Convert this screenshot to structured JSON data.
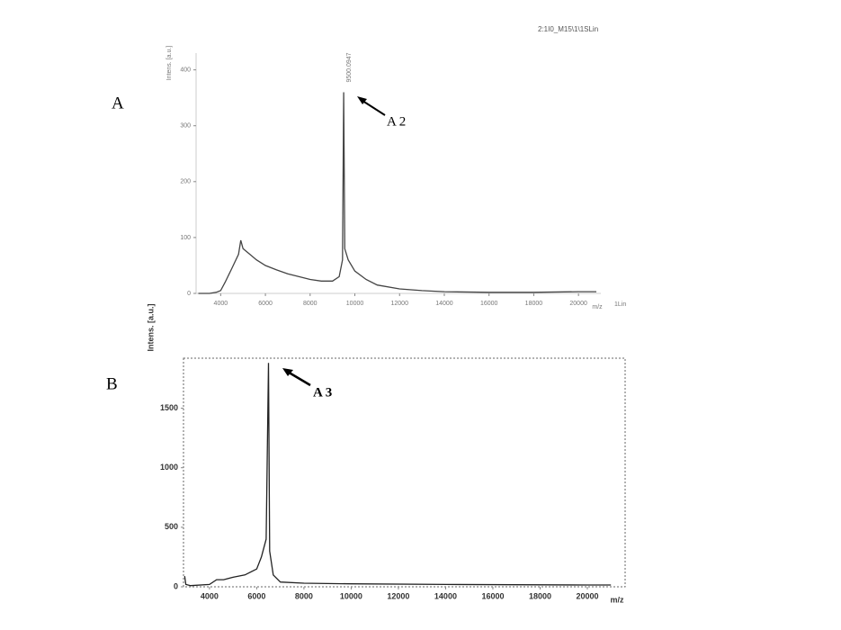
{
  "chart_data": [
    {
      "type": "line",
      "panel_label": "A",
      "arrow_label": "A 2",
      "header": "2:1I0_M15\\1\\1SLin",
      "peak_label": "9500.0947",
      "y_label": "Intens. [a.u.]",
      "x_label": "m/z",
      "x_suffix": "1Lin",
      "color": "#444444",
      "x": [
        3000,
        3500,
        3800,
        4000,
        4200,
        4500,
        4800,
        4900,
        5000,
        5300,
        5600,
        6000,
        6500,
        7000,
        7500,
        8000,
        8500,
        9000,
        9300,
        9450,
        9500,
        9550,
        9700,
        10000,
        10500,
        11000,
        12000,
        13000,
        14000,
        16000,
        18000,
        20000,
        20800
      ],
      "values": [
        0,
        0,
        2,
        5,
        20,
        45,
        70,
        95,
        80,
        70,
        60,
        50,
        42,
        35,
        30,
        25,
        22,
        22,
        30,
        60,
        360,
        80,
        60,
        40,
        25,
        15,
        8,
        5,
        3,
        2,
        2,
        3,
        3
      ],
      "xlim": [
        2900,
        21000
      ],
      "ylim": [
        0,
        430
      ],
      "xticks": [
        4000,
        6000,
        8000,
        10000,
        12000,
        14000,
        16000,
        18000,
        20000
      ],
      "yticks": [
        0,
        100,
        200,
        300,
        400
      ]
    },
    {
      "type": "line",
      "panel_label": "B",
      "arrow_label": "A 3",
      "y_label": "Intens. [a.u.]",
      "x_label": "m/z",
      "color": "#222222",
      "x": [
        2950,
        3000,
        3200,
        4000,
        4300,
        4600,
        5000,
        5500,
        6000,
        6200,
        6400,
        6500,
        6550,
        6700,
        7000,
        8000,
        10000,
        14000,
        20000,
        21000
      ],
      "values": [
        90,
        20,
        10,
        20,
        60,
        60,
        80,
        100,
        150,
        250,
        400,
        1880,
        300,
        100,
        40,
        30,
        25,
        20,
        15,
        15
      ],
      "xlim": [
        2900,
        21600
      ],
      "ylim": [
        0,
        1920
      ],
      "xticks": [
        4000,
        6000,
        8000,
        10000,
        12000,
        14000,
        16000,
        18000,
        20000
      ],
      "yticks": [
        0,
        500,
        1000,
        1500
      ]
    }
  ]
}
